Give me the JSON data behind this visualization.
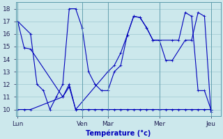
{
  "xlabel": "Température (°c)",
  "background_color": "#cce8ec",
  "grid_color": "#9ec8d0",
  "line_color": "#0000bb",
  "ylim": [
    9.5,
    18.5
  ],
  "yticks": [
    10,
    11,
    12,
    13,
    14,
    15,
    16,
    17,
    18
  ],
  "day_labels": [
    "Lun",
    "Ven",
    "Mar",
    "Mer",
    "Jeu"
  ],
  "day_positions": [
    0,
    10,
    14,
    22,
    30
  ],
  "xlim": [
    -0.3,
    31.5
  ],
  "line_desc_x": [
    0,
    1,
    2,
    7,
    8,
    9,
    10,
    11,
    12,
    13,
    14,
    15,
    16,
    17,
    18,
    19,
    20,
    21,
    22,
    23,
    24,
    25,
    26,
    27,
    28,
    29,
    30
  ],
  "line_desc_y": [
    17,
    14.9,
    14.8,
    11,
    12,
    10,
    10,
    10,
    10,
    10,
    10,
    10,
    10,
    10,
    10,
    10,
    10,
    10,
    10,
    10,
    10,
    10,
    10,
    10,
    10,
    10,
    10
  ],
  "line_asc_x": [
    0,
    1,
    2,
    7,
    8,
    9,
    14,
    15,
    16,
    17,
    18,
    19,
    20,
    21,
    22,
    23,
    24,
    26,
    27,
    28,
    29,
    30
  ],
  "line_asc_y": [
    10,
    10,
    10,
    11,
    11.8,
    10,
    13,
    13.5,
    14.5,
    15.9,
    17.4,
    17.3,
    16.5,
    15.5,
    15.5,
    13.9,
    13.9,
    15.5,
    15.5,
    17.7,
    17.4,
    9.8
  ],
  "line_jag_x": [
    0,
    2,
    3,
    4,
    5,
    6,
    7,
    8,
    9,
    10,
    11,
    12,
    13,
    14,
    15,
    16,
    17,
    18,
    19,
    20,
    21,
    22,
    24,
    25,
    26,
    27,
    28,
    29,
    30
  ],
  "line_jag_y": [
    17,
    16,
    12,
    11.5,
    10,
    11,
    12,
    18,
    18,
    16.5,
    13,
    12,
    11.5,
    11.5,
    13,
    13.5,
    15.9,
    17.4,
    17.3,
    16.5,
    15.5,
    15.5,
    15.5,
    15.5,
    17.7,
    17.4,
    11.5,
    11.5,
    10
  ]
}
